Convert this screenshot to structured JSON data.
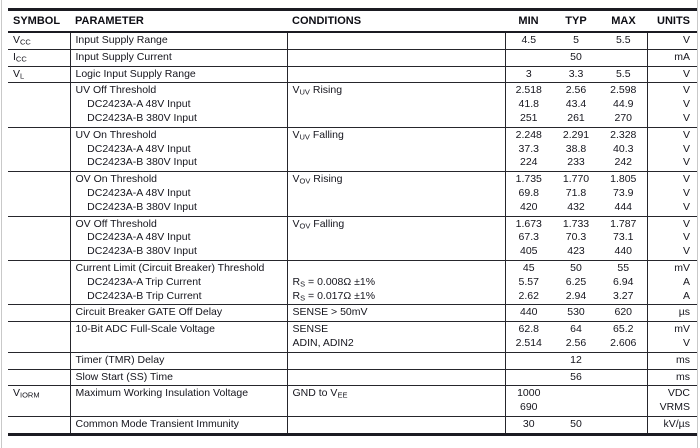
{
  "table": {
    "headers": {
      "symbol": "SYMBOL",
      "parameter": "PARAMETER",
      "conditions": "CONDITIONS",
      "min": "MIN",
      "typ": "TYP",
      "max": "MAX",
      "units": "UNITS"
    },
    "rows": [
      {
        "symbol": "V_{CC}",
        "parameter": [
          "Input Supply Range"
        ],
        "conditions": [
          ""
        ],
        "min": [
          "4.5"
        ],
        "typ": [
          "5"
        ],
        "max": [
          "5.5"
        ],
        "units": [
          "V"
        ]
      },
      {
        "symbol": "I_{CC}",
        "parameter": [
          "Input Supply Current"
        ],
        "conditions": [
          ""
        ],
        "min": [
          ""
        ],
        "typ": [
          "50"
        ],
        "max": [
          ""
        ],
        "units": [
          "mA"
        ]
      },
      {
        "symbol": "V_{L}",
        "parameter": [
          "Logic Input Supply Range"
        ],
        "conditions": [
          ""
        ],
        "min": [
          "3"
        ],
        "typ": [
          "3.3"
        ],
        "max": [
          "5.5"
        ],
        "units": [
          "V"
        ]
      },
      {
        "symbol": "",
        "parameter": [
          "UV Off Threshold",
          "    DC2423A-A 48V Input",
          "    DC2423A-B 380V Input"
        ],
        "conditions": [
          "V_{UV} Rising",
          "",
          ""
        ],
        "min": [
          "2.518",
          "41.8",
          "251"
        ],
        "typ": [
          "2.56",
          "43.4",
          "261"
        ],
        "max": [
          "2.598",
          "44.9",
          "270"
        ],
        "units": [
          "V",
          "V",
          "V"
        ]
      },
      {
        "symbol": "",
        "parameter": [
          "UV On Threshold",
          "    DC2423A-A 48V Input",
          "    DC2423A-B 380V Input"
        ],
        "conditions": [
          "V_{UV} Falling",
          "",
          ""
        ],
        "min": [
          "2.248",
          "37.3",
          "224"
        ],
        "typ": [
          "2.291",
          "38.8",
          "233"
        ],
        "max": [
          "2.328",
          "40.3",
          "242"
        ],
        "units": [
          "V",
          "V",
          "V"
        ]
      },
      {
        "symbol": "",
        "parameter": [
          "OV On Threshold",
          "    DC2423A-A 48V Input",
          "    DC2423A-B 380V Input"
        ],
        "conditions": [
          "V_{OV} Rising",
          "",
          ""
        ],
        "min": [
          "1.735",
          "69.8",
          "420"
        ],
        "typ": [
          "1.770",
          "71.8",
          "432"
        ],
        "max": [
          "1.805",
          "73.9",
          "444"
        ],
        "units": [
          "V",
          "V",
          "V"
        ]
      },
      {
        "symbol": "",
        "parameter": [
          "OV Off Threshold",
          "    DC2423A-A 48V Input",
          "    DC2423A-B 380V Input"
        ],
        "conditions": [
          "V_{OV} Falling",
          "",
          ""
        ],
        "min": [
          "1.673",
          "67.3",
          "405"
        ],
        "typ": [
          "1.733",
          "70.3",
          "423"
        ],
        "max": [
          "1.787",
          "73.1",
          "440"
        ],
        "units": [
          "V",
          "V",
          "V"
        ]
      },
      {
        "symbol": "",
        "parameter": [
          "Current Limit (Circuit Breaker) Threshold",
          "    DC2423A-A Trip Current",
          "    DC2423A-B Trip Current"
        ],
        "conditions": [
          "",
          "R_{S} = 0.008Ω ±1%",
          "R_{S} = 0.017Ω ±1%"
        ],
        "min": [
          "45",
          "5.57",
          "2.62"
        ],
        "typ": [
          "50",
          "6.25",
          "2.94"
        ],
        "max": [
          "55",
          "6.94",
          "3.27"
        ],
        "units": [
          "mV",
          "A",
          "A"
        ]
      },
      {
        "symbol": "",
        "parameter": [
          "Circuit Breaker GATE Off Delay"
        ],
        "conditions": [
          "SENSE > 50mV"
        ],
        "min": [
          "440"
        ],
        "typ": [
          "530"
        ],
        "max": [
          "620"
        ],
        "units": [
          "µs"
        ]
      },
      {
        "symbol": "",
        "parameter": [
          "10-Bit ADC Full-Scale Voltage"
        ],
        "conditions": [
          "SENSE",
          "ADIN, ADIN2"
        ],
        "min": [
          "62.8",
          "2.514"
        ],
        "typ": [
          "64",
          "2.56"
        ],
        "max": [
          "65.2",
          "2.606"
        ],
        "units": [
          "mV",
          "V"
        ]
      },
      {
        "symbol": "",
        "parameter": [
          "Timer (TMR) Delay"
        ],
        "conditions": [
          ""
        ],
        "min": [
          ""
        ],
        "typ": [
          "12"
        ],
        "max": [
          ""
        ],
        "units": [
          "ms"
        ]
      },
      {
        "symbol": "",
        "parameter": [
          "Slow Start (SS) Time"
        ],
        "conditions": [
          ""
        ],
        "min": [
          ""
        ],
        "typ": [
          "56"
        ],
        "max": [
          ""
        ],
        "units": [
          "ms"
        ]
      },
      {
        "symbol": "V_{IORM}",
        "parameter": [
          "Maximum Working Insulation Voltage"
        ],
        "conditions": [
          "GND to V_{EE}"
        ],
        "min": [
          "1000",
          "690"
        ],
        "typ": [
          "",
          ""
        ],
        "max": [
          "",
          ""
        ],
        "units": [
          "VDC",
          "VRMS"
        ]
      },
      {
        "symbol": "",
        "parameter": [
          "Common Mode Transient Immunity"
        ],
        "conditions": [
          ""
        ],
        "min": [
          "30"
        ],
        "typ": [
          "50"
        ],
        "max": [
          ""
        ],
        "units": [
          "kV/µs"
        ]
      }
    ]
  }
}
